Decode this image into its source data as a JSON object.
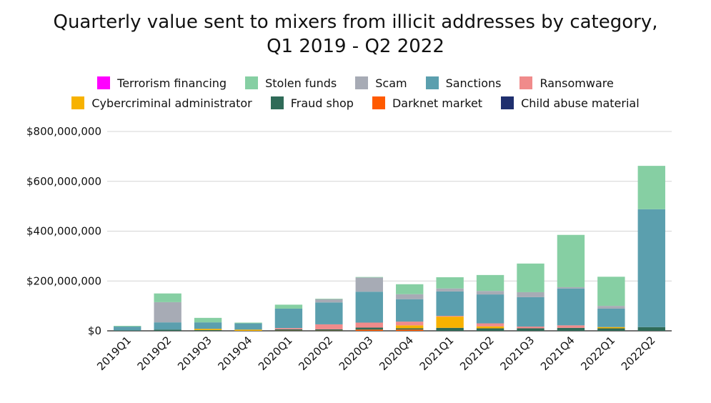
{
  "chart_data": {
    "type": "stacked-bar",
    "title": [
      "Quarterly value sent to mixers from illicit addresses by category,",
      "Q1 2019 - Q2 2022"
    ],
    "categories": [
      "2019Q1",
      "2019Q2",
      "2019Q3",
      "2019Q4",
      "2020Q1",
      "2020Q2",
      "2020Q3",
      "2020Q4",
      "2021Q1",
      "2021Q2",
      "2021Q3",
      "2021Q4",
      "2022Q1",
      "2022Q2"
    ],
    "series": [
      {
        "name": "Terrorism financing",
        "color": "#ff00ff",
        "values": [
          0,
          0,
          0,
          0,
          0,
          0,
          0,
          0,
          0,
          0,
          0,
          0,
          0,
          0
        ]
      },
      {
        "name": "Stolen funds",
        "color": "#86cfa3",
        "values": [
          3,
          35,
          18,
          3,
          16,
          2,
          2,
          40,
          45,
          64,
          115,
          210,
          117,
          174
        ]
      },
      {
        "name": "Scam",
        "color": "#a7abb5",
        "values": [
          0,
          81,
          0,
          0,
          0,
          13,
          57,
          20,
          12,
          14,
          20,
          5,
          11,
          0
        ]
      },
      {
        "name": "Sanctions",
        "color": "#5b9fae",
        "values": [
          15,
          29,
          26,
          25,
          78,
          88,
          124,
          90,
          98,
          116,
          118,
          148,
          74,
          473
        ]
      },
      {
        "name": "Ransomware",
        "color": "#f08b8b",
        "values": [
          0,
          0,
          0,
          0,
          5,
          20,
          20,
          15,
          3,
          12,
          7,
          10,
          0,
          0
        ]
      },
      {
        "name": "Cybercriminal administrator",
        "color": "#f7b200",
        "values": [
          0,
          0,
          5,
          5,
          0,
          0,
          0,
          12,
          45,
          8,
          0,
          0,
          5,
          0
        ]
      },
      {
        "name": "Fraud shop",
        "color": "#2f6b58",
        "values": [
          2,
          5,
          3,
          0,
          5,
          5,
          8,
          5,
          12,
          10,
          10,
          12,
          10,
          15
        ]
      },
      {
        "name": "Darknet market",
        "color": "#ff5a00",
        "values": [
          0,
          0,
          0,
          0,
          1,
          1,
          5,
          5,
          0,
          0,
          0,
          0,
          0,
          0
        ]
      },
      {
        "name": "Child abuse material",
        "color": "#1f2f6e",
        "values": [
          0,
          0,
          0,
          0,
          0,
          0,
          0,
          0,
          0,
          0,
          0,
          0,
          0,
          0
        ]
      }
    ],
    "ylim": [
      0,
      800000000
    ],
    "yticks": [
      {
        "value": 0,
        "label": "$0"
      },
      {
        "value": 200000000,
        "label": "$200,000,000"
      },
      {
        "value": 400000000,
        "label": "$400,000,000"
      },
      {
        "value": 600000000,
        "label": "$600,000,000"
      },
      {
        "value": 800000000,
        "label": "$800,000,000"
      }
    ],
    "value_unit": 1000000,
    "grid": true
  }
}
